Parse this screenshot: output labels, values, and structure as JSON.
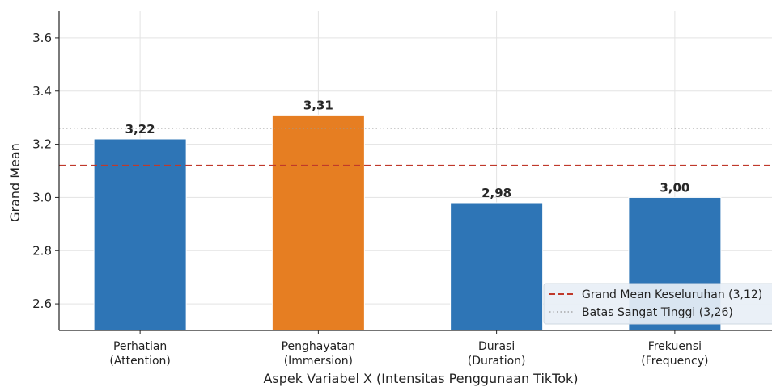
{
  "chart_data": {
    "type": "bar",
    "categories": [
      [
        "Perhatian",
        "(Attention)"
      ],
      [
        "Penghayatan",
        "(Immersion)"
      ],
      [
        "Durasi",
        "(Duration)"
      ],
      [
        "Frekuensi",
        "(Frequency)"
      ]
    ],
    "values": [
      3.22,
      3.31,
      2.98,
      3.0
    ],
    "value_labels": [
      "3,22",
      "3,31",
      "2,98",
      "3,00"
    ],
    "bar_colors": [
      "#2e75b6",
      "#e67e22",
      "#2e75b6",
      "#2e75b6"
    ],
    "xlabel": "Aspek Variabel X (Intensitas Penggunaan TikTok)",
    "ylabel": "Grand Mean",
    "ylim": [
      2.5,
      3.7
    ],
    "yticks": [
      2.6,
      2.8,
      3.0,
      3.2,
      3.4,
      3.6
    ],
    "ytick_labels": [
      "2.6",
      "2.8",
      "3.0",
      "3.2",
      "3.4",
      "3.6"
    ],
    "grid": true,
    "reference_lines": [
      {
        "label": "Grand Mean Keseluruhan (3,12)",
        "value": 3.12,
        "style": "dashed",
        "color": "#c0392b"
      },
      {
        "label": "Batas Sangat Tinggi (3,26)",
        "value": 3.26,
        "style": "dotted",
        "color": "#9a9a9a"
      }
    ],
    "legend_position": "lower-right"
  }
}
